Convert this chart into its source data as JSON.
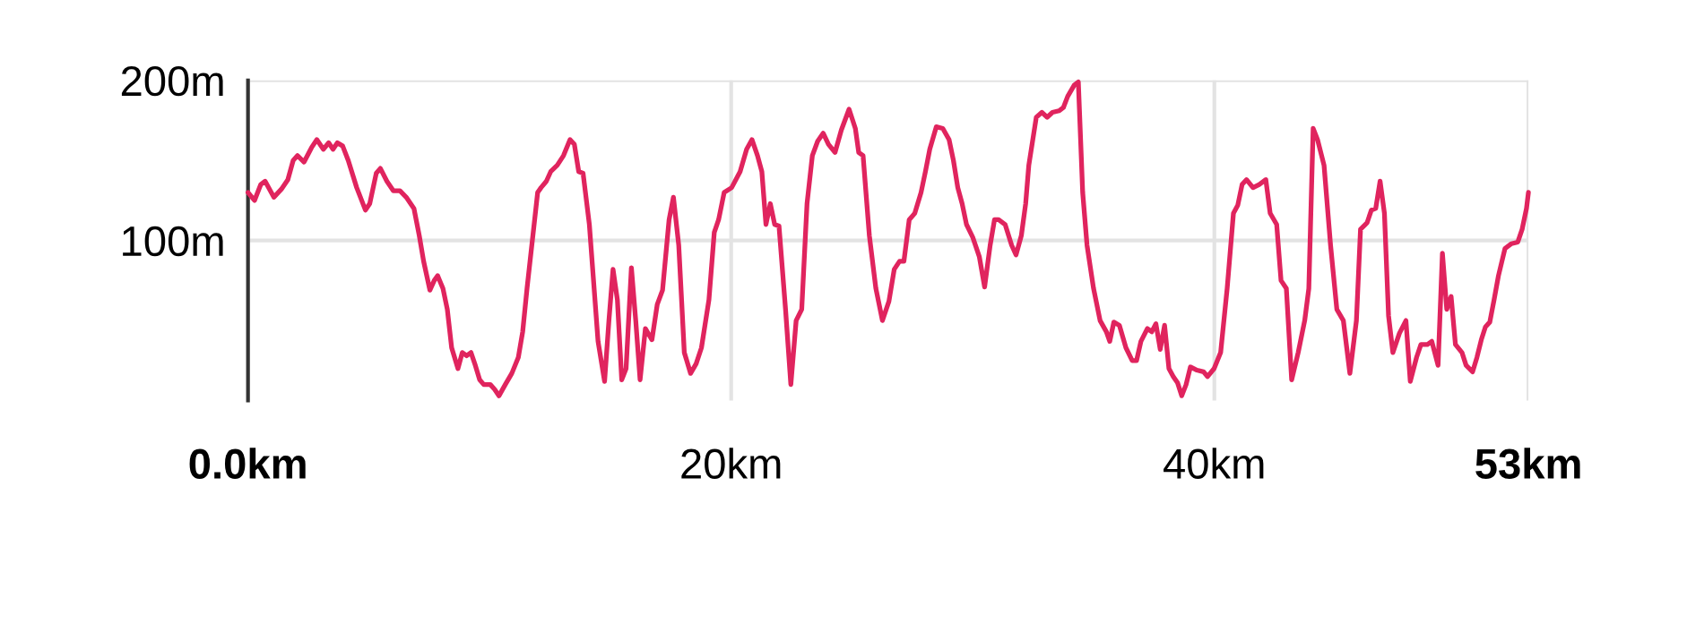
{
  "chart_data": {
    "type": "line",
    "x": [
      0.0,
      0.27,
      0.53,
      0.71,
      1.07,
      1.38,
      1.65,
      1.87,
      2.05,
      2.32,
      2.63,
      2.85,
      3.12,
      3.34,
      3.52,
      3.7,
      3.92,
      4.15,
      4.5,
      4.86,
      5.04,
      5.31,
      5.48,
      5.75,
      6.02,
      6.29,
      6.55,
      6.87,
      7.09,
      7.27,
      7.53,
      7.71,
      7.85,
      8.07,
      8.25,
      8.43,
      8.69,
      8.87,
      9.05,
      9.23,
      9.41,
      9.59,
      9.76,
      10.03,
      10.21,
      10.39,
      10.65,
      10.92,
      11.19,
      11.37,
      11.55,
      11.77,
      11.99,
      12.13,
      12.35,
      12.53,
      12.8,
      13.06,
      13.33,
      13.51,
      13.69,
      13.87,
      14.13,
      14.49,
      14.76,
      14.94,
      15.11,
      15.29,
      15.47,
      15.65,
      15.87,
      16.05,
      16.23,
      16.45,
      16.72,
      16.94,
      17.16,
      17.43,
      17.61,
      17.83,
      18.06,
      18.32,
      18.55,
      18.77,
      19.08,
      19.3,
      19.48,
      19.71,
      20.02,
      20.37,
      20.64,
      20.86,
      21.09,
      21.27,
      21.44,
      21.62,
      21.8,
      21.98,
      22.25,
      22.47,
      22.69,
      22.92,
      23.14,
      23.36,
      23.58,
      23.81,
      24.03,
      24.3,
      24.56,
      24.88,
      25.14,
      25.28,
      25.46,
      25.72,
      25.99,
      26.26,
      26.53,
      26.75,
      26.97,
      27.15,
      27.37,
      27.6,
      27.86,
      28.04,
      28.22,
      28.49,
      28.76,
      29.02,
      29.2,
      29.38,
      29.56,
      29.74,
      30.0,
      30.27,
      30.49,
      30.72,
      30.9,
      31.07,
      31.34,
      31.61,
      31.79,
      32.01,
      32.19,
      32.32,
      32.63,
      32.86,
      33.08,
      33.3,
      33.57,
      33.75,
      33.93,
      34.2,
      34.37,
      34.55,
      34.73,
      35.0,
      35.27,
      35.53,
      35.67,
      35.84,
      36.07,
      36.34,
      36.6,
      36.78,
      36.96,
      37.23,
      37.41,
      37.58,
      37.76,
      37.94,
      38.12,
      38.3,
      38.48,
      38.65,
      38.83,
      39.01,
      39.28,
      39.55,
      39.72,
      39.99,
      40.26,
      40.53,
      40.79,
      40.97,
      41.15,
      41.33,
      41.6,
      41.86,
      42.13,
      42.31,
      42.58,
      42.76,
      42.98,
      43.2,
      43.47,
      43.74,
      43.91,
      44.09,
      44.27,
      44.54,
      44.81,
      45.07,
      45.34,
      45.61,
      45.88,
      46.05,
      46.32,
      46.5,
      46.68,
      46.86,
      47.04,
      47.21,
      47.39,
      47.66,
      47.93,
      48.11,
      48.37,
      48.55,
      48.82,
      49.0,
      49.26,
      49.44,
      49.62,
      49.8,
      49.98,
      50.25,
      50.42,
      50.69,
      50.87,
      51.05,
      51.22,
      51.4,
      51.58,
      51.76,
      52.03,
      52.3,
      52.56,
      52.74,
      52.92,
      53.0
    ],
    "series": [
      {
        "color": "#e0245e",
        "values": [
          130,
          125,
          135,
          137,
          127,
          132,
          138,
          150,
          153,
          149,
          158,
          163,
          157,
          161,
          157,
          161,
          159,
          150,
          133,
          119,
          123,
          142,
          145,
          137,
          131,
          131,
          127,
          120,
          103,
          87,
          69,
          75,
          78,
          70,
          57,
          33,
          20,
          30,
          28,
          30,
          22,
          13,
          10,
          10,
          7,
          3,
          10,
          17,
          27,
          43,
          70,
          100,
          130,
          133,
          137,
          143,
          147,
          153,
          163,
          160,
          143,
          142,
          110,
          37,
          12,
          50,
          82,
          63,
          13,
          20,
          83,
          50,
          13,
          45,
          38,
          60,
          69,
          113,
          127,
          97,
          30,
          17,
          23,
          33,
          63,
          105,
          113,
          130,
          133,
          143,
          157,
          163,
          153,
          143,
          110,
          123,
          110,
          109,
          57,
          10,
          50,
          57,
          123,
          153,
          162,
          167,
          160,
          155,
          169,
          182,
          170,
          155,
          153,
          103,
          70,
          50,
          62,
          82,
          87,
          87,
          113,
          117,
          130,
          143,
          157,
          171,
          170,
          163,
          150,
          133,
          123,
          110,
          102,
          90,
          71,
          97,
          113,
          113,
          110,
          97,
          91,
          103,
          123,
          147,
          177,
          180,
          177,
          180,
          181,
          183,
          190,
          197,
          199,
          130,
          97,
          70,
          50,
          43,
          37,
          49,
          47,
          33,
          25,
          25,
          37,
          45,
          43,
          48,
          32,
          47,
          20,
          15,
          11,
          3,
          10,
          21,
          19,
          18,
          15,
          20,
          30,
          70,
          117,
          122,
          135,
          138,
          133,
          135,
          138,
          117,
          110,
          75,
          70,
          13,
          30,
          50,
          70,
          170,
          163,
          147,
          97,
          57,
          50,
          17,
          50,
          107,
          111,
          119,
          120,
          137,
          117,
          53,
          30,
          42,
          50,
          12,
          27,
          35,
          35,
          37,
          22,
          92,
          57,
          65,
          35,
          30,
          22,
          18,
          27,
          38,
          46,
          49,
          63,
          78,
          95,
          98,
          99,
          107,
          120,
          130
        ]
      }
    ],
    "xlim": [
      0,
      53
    ],
    "xticks": [
      {
        "value": 0,
        "label": "0.0km"
      },
      {
        "value": 20,
        "label": "20km"
      },
      {
        "value": 40,
        "label": "40km"
      },
      {
        "value": 53,
        "label": "53km"
      }
    ],
    "ylim": [
      0,
      200
    ],
    "yticks": [
      {
        "value": 100,
        "label": "100m"
      },
      {
        "value": 200,
        "label": "200m"
      }
    ],
    "grid": true,
    "line_style": "solid"
  }
}
